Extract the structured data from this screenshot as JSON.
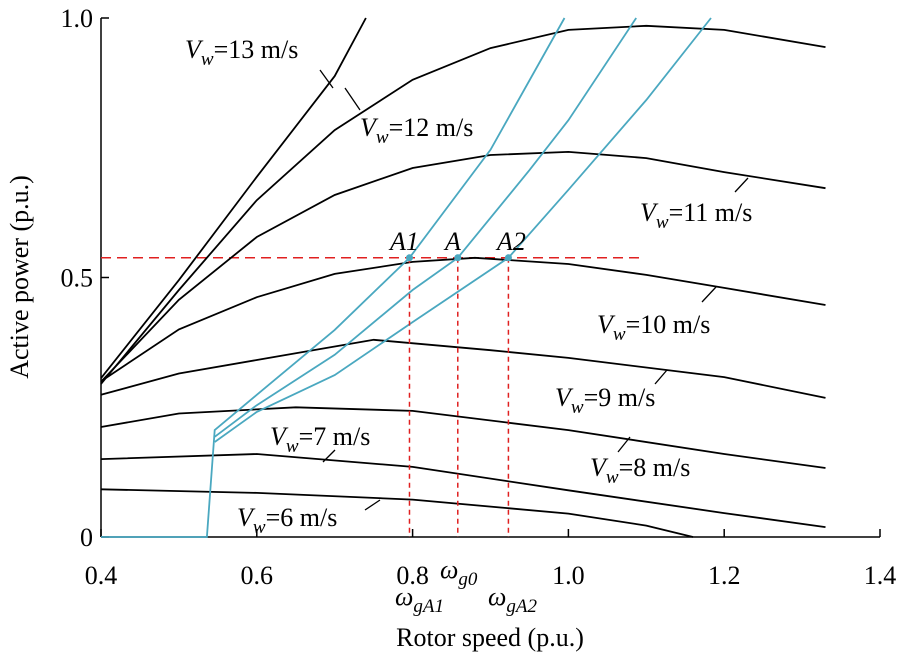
{
  "chart_data": {
    "type": "line",
    "xlabel": "Rotor speed (p.u.)",
    "ylabel": "Active power (p.u.)",
    "xlim": [
      0.4,
      1.4
    ],
    "ylim": [
      0,
      1
    ],
    "xticks": [
      0.4,
      0.6,
      0.8,
      {
        "value": 1,
        "label": "1.0"
      },
      1.2,
      1.4
    ],
    "yticks": [
      0,
      0.5,
      {
        "value": 1,
        "label": "1.0"
      }
    ],
    "series": [
      {
        "color": "#000000",
        "label": {
          "symbol": "V",
          "subscript": "w",
          "text": "=6 m/s"
        },
        "x": [
          0.4,
          0.6,
          0.8,
          1.0,
          1.1,
          1.16
        ],
        "values": [
          0.092,
          0.085,
          0.072,
          0.045,
          0.022,
          0
        ]
      },
      {
        "color": "#000000",
        "label": {
          "symbol": "V",
          "subscript": "w",
          "text": "=7 m/s"
        },
        "x": [
          0.4,
          0.6,
          0.8,
          1.0,
          1.2,
          1.33
        ],
        "values": [
          0.15,
          0.16,
          0.135,
          0.09,
          0.046,
          0.019
        ]
      },
      {
        "color": "#000000",
        "label": {
          "symbol": "V",
          "subscript": "w",
          "text": "=8 m/s"
        },
        "x": [
          0.4,
          0.5,
          0.65,
          0.8,
          1.0,
          1.2,
          1.33
        ],
        "values": [
          0.212,
          0.238,
          0.25,
          0.243,
          0.206,
          0.16,
          0.133
        ]
      },
      {
        "color": "#000000",
        "label": {
          "symbol": "V",
          "subscript": "w",
          "text": "=9 m/s"
        },
        "x": [
          0.4,
          0.5,
          0.6,
          0.75,
          0.9,
          1.0,
          1.2,
          1.33
        ],
        "values": [
          0.274,
          0.315,
          0.341,
          0.38,
          0.36,
          0.345,
          0.308,
          0.268
        ]
      },
      {
        "color": "#000000",
        "label": {
          "symbol": "V",
          "subscript": "w",
          "text": "=10 m/s"
        },
        "x": [
          0.4,
          0.5,
          0.6,
          0.7,
          0.8,
          0.88,
          1.0,
          1.1,
          1.2,
          1.33
        ],
        "values": [
          0.3,
          0.4,
          0.462,
          0.507,
          0.53,
          0.538,
          0.526,
          0.505,
          0.48,
          0.447
        ]
      },
      {
        "color": "#000000",
        "label": {
          "symbol": "V",
          "subscript": "w",
          "text": "=11 m/s"
        },
        "x": [
          0.4,
          0.5,
          0.6,
          0.7,
          0.8,
          0.9,
          1.0,
          1.1,
          1.2,
          1.33
        ],
        "values": [
          0.299,
          0.457,
          0.578,
          0.659,
          0.711,
          0.736,
          0.742,
          0.73,
          0.703,
          0.672
        ]
      },
      {
        "color": "#000000",
        "label": {
          "symbol": "V",
          "subscript": "w",
          "text": "=12 m/s"
        },
        "x": [
          0.4,
          0.5,
          0.6,
          0.7,
          0.8,
          0.9,
          1.0,
          1.1,
          1.2,
          1.33
        ],
        "values": [
          0.295,
          0.476,
          0.649,
          0.784,
          0.881,
          0.942,
          0.977,
          0.985,
          0.977,
          0.944
        ]
      },
      {
        "color": "#000000",
        "label": {
          "symbol": "V",
          "subscript": "w",
          "text": "=13 m/s"
        },
        "x": [
          0.4,
          0.5,
          0.6,
          0.7,
          0.74
        ],
        "values": [
          0.306,
          0.495,
          0.694,
          0.888,
          1
        ]
      },
      {
        "color": "#4aa8c0",
        "x": [
          0.4,
          0.536,
          0.546,
          0.6,
          0.7,
          0.796,
          0.9,
          0.995
        ],
        "values": [
          0,
          0,
          0.206,
          0.274,
          0.399,
          0.538,
          0.746,
          1
        ]
      },
      {
        "color": "#4aa8c0",
        "x": [
          0.546,
          0.6,
          0.7,
          0.8,
          0.858,
          0.95,
          1.0,
          1.087
        ],
        "values": [
          0.193,
          0.254,
          0.351,
          0.476,
          0.538,
          0.707,
          0.803,
          1
        ]
      },
      {
        "color": "#4aa8c0",
        "x": [
          0.546,
          0.6,
          0.7,
          0.8,
          0.923,
          1.0,
          1.1,
          1.183
        ],
        "values": [
          0.183,
          0.241,
          0.312,
          0.414,
          0.538,
          0.669,
          0.842,
          1
        ]
      }
    ],
    "reference": {
      "color": "#e02020",
      "y": 0.538,
      "x": [
        0.4,
        1.091
      ]
    },
    "points": [
      {
        "name": "A1",
        "x": 0.796,
        "y": 0.538,
        "omega": {
          "symbol": "ω",
          "subscript": "gA1"
        }
      },
      {
        "name": "A",
        "x": 0.858,
        "y": 0.538,
        "omega": {
          "symbol": "ω",
          "subscript": "g0"
        }
      },
      {
        "name": "A2",
        "x": 0.923,
        "y": 0.538,
        "omega": {
          "symbol": "ω",
          "subscript": "gA2"
        }
      }
    ],
    "point_color": "#4aa8c0"
  }
}
